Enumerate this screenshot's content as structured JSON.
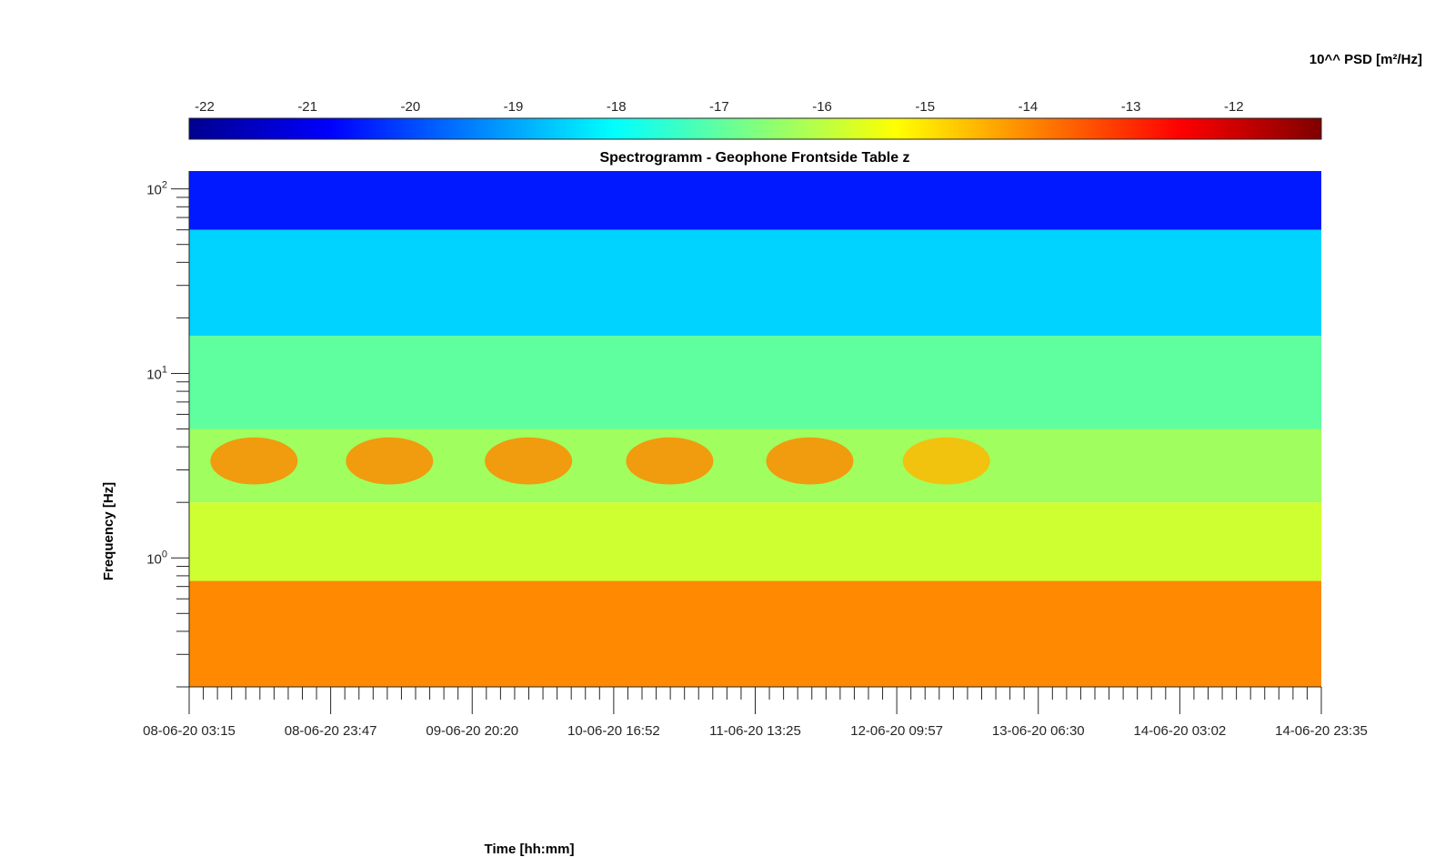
{
  "chart_data": {
    "type": "heatmap",
    "title": "Spectrogramm - Geophone Frontside Table z",
    "xlabel": "Time [hh:mm]",
    "ylabel": "Frequency [Hz]",
    "x_tick_labels": [
      "08-06-20 03:15",
      "08-06-20 23:47",
      "09-06-20 20:20",
      "10-06-20 16:52",
      "11-06-20 13:25",
      "12-06-20 09:57",
      "13-06-20 06:30",
      "14-06-20 03:02",
      "14-06-20 23:35"
    ],
    "y_scale": "log",
    "y_ticks": [
      {
        "base": "10",
        "exp": "2",
        "value": 100
      },
      {
        "base": "10",
        "exp": "1",
        "value": 10
      },
      {
        "base": "10",
        "exp": "0",
        "value": 1
      }
    ],
    "ylim": [
      0.2,
      125
    ],
    "colorbar": {
      "title": "10^^ PSD [m²/Hz]",
      "ticks": [
        "-22",
        "-21",
        "-20",
        "-19",
        "-18",
        "-17",
        "-16",
        "-15",
        "-14",
        "-13",
        "-12"
      ],
      "range": [
        -22.15,
        -11.15
      ],
      "colormap": "jet",
      "location": "top"
    },
    "bands": [
      {
        "f_low": 60,
        "f_high": 125,
        "log_psd": -20.5
      },
      {
        "f_low": 16,
        "f_high": 60,
        "log_psd": -18.5
      },
      {
        "f_low": 5,
        "f_high": 16,
        "log_psd": -17.0
      },
      {
        "f_low": 2,
        "f_high": 5,
        "log_psd": -16.3
      },
      {
        "f_low": 0.75,
        "f_high": 2,
        "log_psd": -15.8
      },
      {
        "f_low": 0.2,
        "f_high": 0.75,
        "log_psd": -14.0
      }
    ],
    "daily_bursts": [
      {
        "center": "08-06-20 12:40",
        "f_low": 2.5,
        "f_high": 4.5,
        "log_psd": -14.0
      },
      {
        "center": "09-06-20 08:20",
        "f_low": 2.5,
        "f_high": 4.5,
        "log_psd": -14.0
      },
      {
        "center": "10-06-20 04:30",
        "f_low": 2.5,
        "f_high": 4.5,
        "log_psd": -14.0
      },
      {
        "center": "11-06-20 01:00",
        "f_low": 2.5,
        "f_high": 4.5,
        "log_psd": -14.0
      },
      {
        "center": "11-06-20 21:20",
        "f_low": 2.5,
        "f_high": 4.5,
        "log_psd": -14.0
      },
      {
        "center": "12-06-20 17:10",
        "f_low": 2.5,
        "f_high": 4.5,
        "log_psd": -14.5
      }
    ],
    "grid": false,
    "legend": "none"
  }
}
